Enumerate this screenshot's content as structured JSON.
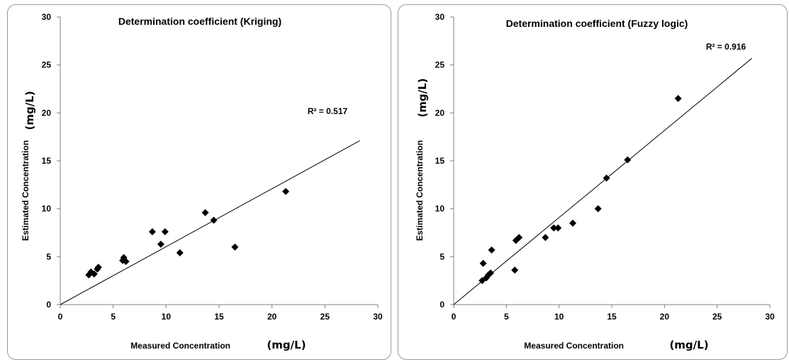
{
  "chart_data": [
    {
      "type": "scatter",
      "title": "Determination coefficient (Kriging)",
      "xlabel": "Measured Concentration",
      "xlabel_unit": "(mg/L)",
      "ylabel": "Estimated Concentration",
      "ylabel_unit": "(mg/L)",
      "xlim": [
        0,
        30
      ],
      "ylim": [
        0,
        30
      ],
      "xticks": [
        "0",
        "5",
        "10",
        "15",
        "20",
        "25",
        "30"
      ],
      "yticks": [
        "0",
        "5",
        "10",
        "15",
        "20",
        "25",
        "30"
      ],
      "annotation": "R² = 0.517",
      "marker_color": "#000000",
      "points": [
        {
          "x": 2.7,
          "y": 3.1
        },
        {
          "x": 2.9,
          "y": 3.4
        },
        {
          "x": 3.2,
          "y": 3.2
        },
        {
          "x": 3.5,
          "y": 3.7
        },
        {
          "x": 3.6,
          "y": 3.9
        },
        {
          "x": 5.9,
          "y": 4.6
        },
        {
          "x": 6.0,
          "y": 4.9
        },
        {
          "x": 6.2,
          "y": 4.5
        },
        {
          "x": 8.7,
          "y": 7.6
        },
        {
          "x": 9.5,
          "y": 6.3
        },
        {
          "x": 9.9,
          "y": 7.6
        },
        {
          "x": 11.3,
          "y": 5.4
        },
        {
          "x": 13.7,
          "y": 9.6
        },
        {
          "x": 14.5,
          "y": 8.8
        },
        {
          "x": 16.5,
          "y": 6.0
        },
        {
          "x": 21.3,
          "y": 11.8
        }
      ],
      "trendline": {
        "x": [
          0,
          28.3
        ],
        "y": [
          0,
          17.1
        ]
      }
    },
    {
      "type": "scatter",
      "title": "Determination coefficient (Fuzzy logic)",
      "xlabel": "Measured Concentration",
      "xlabel_unit": "(mg/L)",
      "ylabel": "Estimated Concentration",
      "ylabel_unit": "(mg/L)",
      "xlim": [
        0,
        30
      ],
      "ylim": [
        0,
        30
      ],
      "xticks": [
        "0",
        "5",
        "10",
        "15",
        "20",
        "25",
        "30"
      ],
      "yticks": [
        "0",
        "5",
        "10",
        "15",
        "20",
        "25",
        "30"
      ],
      "annotation": "R² = 0.916",
      "marker_color": "#000000",
      "points": [
        {
          "x": 2.7,
          "y": 2.5
        },
        {
          "x": 2.8,
          "y": 4.3
        },
        {
          "x": 3.1,
          "y": 2.8
        },
        {
          "x": 3.3,
          "y": 3.1
        },
        {
          "x": 3.5,
          "y": 3.3
        },
        {
          "x": 3.6,
          "y": 5.7
        },
        {
          "x": 5.8,
          "y": 3.6
        },
        {
          "x": 5.9,
          "y": 6.7
        },
        {
          "x": 6.2,
          "y": 7.0
        },
        {
          "x": 8.7,
          "y": 7.0
        },
        {
          "x": 9.5,
          "y": 8.0
        },
        {
          "x": 9.9,
          "y": 8.0
        },
        {
          "x": 11.3,
          "y": 8.5
        },
        {
          "x": 13.7,
          "y": 10.0
        },
        {
          "x": 14.5,
          "y": 13.2
        },
        {
          "x": 16.5,
          "y": 15.1
        },
        {
          "x": 21.3,
          "y": 21.5
        }
      ],
      "trendline": {
        "x": [
          0,
          28.3
        ],
        "y": [
          0,
          25.7
        ]
      }
    }
  ]
}
